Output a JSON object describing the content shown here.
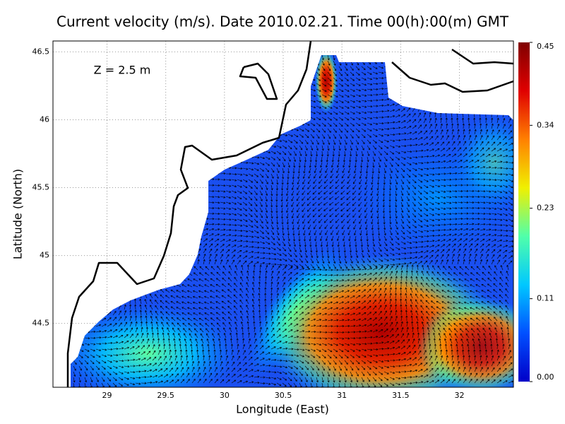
{
  "chart_data": {
    "type": "vector-field",
    "title": "Current velocity (m/s). Date 2010.02.21. Time 00(h):00(m) GMT",
    "annotation": "Z = 2.5 m",
    "x_label": "Longitude (East)",
    "y_label": "Latitude (North)",
    "xlim": [
      28.54,
      32.46
    ],
    "xticks": [
      29,
      29.5,
      30,
      30.5,
      31,
      31.5,
      32
    ],
    "ylim": [
      44.03,
      46.58
    ],
    "yticks": [
      44.5,
      45,
      45.5,
      46,
      46.5
    ],
    "grid": true,
    "colorbar": {
      "lim": [
        0,
        0.45
      ],
      "ticks": [
        {
          "value": 0,
          "label": "0.00"
        },
        0.11,
        0.23,
        0.34,
        0.45
      ],
      "colors": [
        "#0000c8",
        "#0050ff",
        "#00c8ff",
        "#50ffaa",
        "#f0f000",
        "#ff8000",
        "#e00000",
        "#800000"
      ]
    }
  }
}
